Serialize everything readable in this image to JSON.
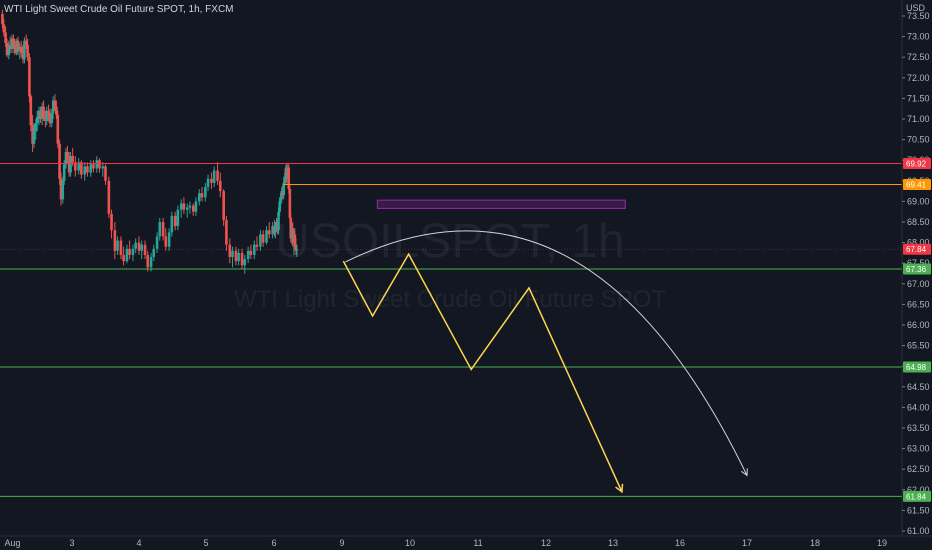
{
  "chart_data": {
    "type": "candlestick",
    "symbol_title": "WTI Light Sweet Crude Oil Future SPOT, 1h, FXCM",
    "watermark_symbol": "USOILSPOT, 1h",
    "watermark_name": "WTI Light Sweet Crude Oil Future SPOT",
    "currency": "USD",
    "ylim": [
      60.9,
      73.55
    ],
    "y_ticks": [
      61.0,
      61.5,
      62.0,
      62.5,
      63.0,
      63.5,
      64.0,
      64.5,
      65.0,
      65.5,
      66.0,
      66.5,
      67.0,
      67.5,
      68.0,
      68.5,
      69.0,
      69.5,
      70.0,
      70.5,
      71.0,
      71.5,
      72.0,
      72.5,
      73.0,
      73.5
    ],
    "x_ticks": [
      {
        "label": "Aug",
        "x": 1.1
      },
      {
        "label": "3",
        "x": 3
      },
      {
        "label": "4",
        "x": 4
      },
      {
        "label": "5",
        "x": 5
      },
      {
        "label": "6",
        "x": 6
      },
      {
        "label": "9",
        "x": 9
      },
      {
        "label": "10",
        "x": 10
      },
      {
        "label": "11",
        "x": 11
      },
      {
        "label": "12",
        "x": 12
      },
      {
        "label": "13",
        "x": 13
      },
      {
        "label": "16",
        "x": 16
      },
      {
        "label": "17",
        "x": 17
      },
      {
        "label": "18",
        "x": 18
      },
      {
        "label": "19",
        "x": 19
      }
    ],
    "x_range": [
      1.0,
      19.3
    ],
    "colors": {
      "up": "#26a69a",
      "down": "#ef5350",
      "resistance": "#f23645",
      "orange": "#ff9800",
      "support": "#4caf50",
      "zigzag": "#ffd54f",
      "arc": "#d1d4dc",
      "zone": "#9c27b0",
      "current_price": "#f23645"
    },
    "horizontal_levels": [
      {
        "price": 69.92,
        "label": "69.92",
        "color": "#f23645"
      },
      {
        "price": 69.41,
        "label": "69.41",
        "color": "#ff9800",
        "x_start": 6.42
      },
      {
        "price": 67.36,
        "label": "67.36",
        "color": "#4caf50"
      },
      {
        "price": 64.98,
        "label": "64.98",
        "color": "#4caf50"
      },
      {
        "price": 61.84,
        "label": "61.84",
        "color": "#4caf50"
      }
    ],
    "current_price": {
      "price": 67.84,
      "label": "67.84"
    },
    "zone": {
      "x1": 9.52,
      "x2": 13.55,
      "y1": 68.83,
      "y2": 69.03
    },
    "zigzag": [
      {
        "x": 9.02,
        "y": 67.55
      },
      {
        "x": 9.45,
        "y": 66.22
      },
      {
        "x": 9.98,
        "y": 67.72
      },
      {
        "x": 10.9,
        "y": 64.92
      },
      {
        "x": 11.75,
        "y": 66.9
      },
      {
        "x": 13.4,
        "y": 61.95
      }
    ],
    "arc": {
      "start": {
        "x": 9.05,
        "y": 67.53
      },
      "control": {
        "x": 12.6,
        "y": 70.4
      },
      "end": {
        "x": 17.0,
        "y": 62.35
      }
    },
    "candles": [
      {
        "x": 1.04,
        "o": 73.55,
        "h": 73.65,
        "l": 73.2,
        "c": 73.3
      },
      {
        "x": 1.08,
        "o": 73.3,
        "h": 73.42,
        "l": 73.0,
        "c": 73.1
      },
      {
        "x": 1.13,
        "o": 73.1,
        "h": 73.25,
        "l": 72.75,
        "c": 72.85
      },
      {
        "x": 1.17,
        "o": 72.85,
        "h": 72.95,
        "l": 72.5,
        "c": 72.55
      },
      {
        "x": 1.22,
        "o": 72.55,
        "h": 72.9,
        "l": 72.45,
        "c": 72.8
      },
      {
        "x": 1.26,
        "o": 72.8,
        "h": 73.0,
        "l": 72.6,
        "c": 72.7
      },
      {
        "x": 1.31,
        "o": 72.7,
        "h": 73.05,
        "l": 72.6,
        "c": 72.95
      },
      {
        "x": 1.35,
        "o": 72.95,
        "h": 73.05,
        "l": 72.7,
        "c": 72.8
      },
      {
        "x": 1.39,
        "o": 72.8,
        "h": 72.95,
        "l": 72.55,
        "c": 72.6
      },
      {
        "x": 1.44,
        "o": 72.6,
        "h": 72.95,
        "l": 72.55,
        "c": 72.9
      },
      {
        "x": 1.48,
        "o": 72.9,
        "h": 73.0,
        "l": 72.55,
        "c": 72.65
      },
      {
        "x": 1.53,
        "o": 72.65,
        "h": 72.85,
        "l": 72.45,
        "c": 72.75
      },
      {
        "x": 1.57,
        "o": 72.75,
        "h": 72.9,
        "l": 72.5,
        "c": 72.6
      },
      {
        "x": 1.62,
        "o": 72.6,
        "h": 72.8,
        "l": 72.35,
        "c": 72.45
      },
      {
        "x": 1.66,
        "o": 72.45,
        "h": 72.98,
        "l": 72.35,
        "c": 72.9
      },
      {
        "x": 1.71,
        "o": 72.9,
        "h": 73.05,
        "l": 72.7,
        "c": 72.8
      },
      {
        "x": 1.75,
        "o": 72.8,
        "h": 72.95,
        "l": 72.4,
        "c": 72.5
      },
      {
        "x": 1.8,
        "o": 72.5,
        "h": 72.6,
        "l": 71.4,
        "c": 71.55
      },
      {
        "x": 1.84,
        "o": 71.55,
        "h": 71.6,
        "l": 70.7,
        "c": 70.85
      },
      {
        "x": 1.89,
        "o": 70.85,
        "h": 71.1,
        "l": 70.2,
        "c": 70.4
      },
      {
        "x": 1.93,
        "o": 70.4,
        "h": 70.9,
        "l": 70.3,
        "c": 70.7
      },
      {
        "x": 1.98,
        "o": 70.7,
        "h": 71.0,
        "l": 70.5,
        "c": 70.9
      },
      {
        "x": 2.02,
        "o": 70.9,
        "h": 71.2,
        "l": 70.7,
        "c": 71.05
      },
      {
        "x": 2.07,
        "o": 71.05,
        "h": 71.3,
        "l": 70.85,
        "c": 71.2
      },
      {
        "x": 2.11,
        "o": 71.2,
        "h": 71.3,
        "l": 70.9,
        "c": 71.0
      },
      {
        "x": 2.16,
        "o": 71.0,
        "h": 71.4,
        "l": 70.85,
        "c": 71.3
      },
      {
        "x": 2.2,
        "o": 71.3,
        "h": 71.45,
        "l": 70.95,
        "c": 71.05
      },
      {
        "x": 2.25,
        "o": 71.05,
        "h": 71.2,
        "l": 70.8,
        "c": 70.95
      },
      {
        "x": 2.29,
        "o": 70.95,
        "h": 71.3,
        "l": 70.85,
        "c": 71.2
      },
      {
        "x": 2.34,
        "o": 71.2,
        "h": 71.35,
        "l": 70.95,
        "c": 71.1
      },
      {
        "x": 2.38,
        "o": 71.1,
        "h": 71.25,
        "l": 70.8,
        "c": 70.9
      },
      {
        "x": 2.43,
        "o": 70.9,
        "h": 71.25,
        "l": 70.8,
        "c": 71.15
      },
      {
        "x": 2.47,
        "o": 71.15,
        "h": 71.55,
        "l": 71.0,
        "c": 71.45
      },
      {
        "x": 2.52,
        "o": 71.45,
        "h": 71.6,
        "l": 71.2,
        "c": 71.3
      },
      {
        "x": 2.56,
        "o": 71.3,
        "h": 71.45,
        "l": 71.0,
        "c": 71.1
      },
      {
        "x": 2.6,
        "o": 71.1,
        "h": 71.2,
        "l": 70.3,
        "c": 70.4
      },
      {
        "x": 2.65,
        "o": 70.4,
        "h": 70.5,
        "l": 69.4,
        "c": 69.55
      },
      {
        "x": 2.69,
        "o": 69.55,
        "h": 69.7,
        "l": 68.9,
        "c": 69.05
      },
      {
        "x": 2.74,
        "o": 69.05,
        "h": 69.6,
        "l": 68.95,
        "c": 69.5
      },
      {
        "x": 2.78,
        "o": 69.5,
        "h": 70.0,
        "l": 69.4,
        "c": 69.9
      },
      {
        "x": 2.83,
        "o": 69.9,
        "h": 70.3,
        "l": 69.8,
        "c": 70.2
      },
      {
        "x": 2.87,
        "o": 70.2,
        "h": 70.35,
        "l": 69.9,
        "c": 70.0
      },
      {
        "x": 2.92,
        "o": 70.0,
        "h": 70.2,
        "l": 69.6,
        "c": 69.7
      },
      {
        "x": 2.96,
        "o": 69.7,
        "h": 70.2,
        "l": 69.6,
        "c": 70.1
      },
      {
        "x": 3.01,
        "o": 70.1,
        "h": 70.3,
        "l": 69.85,
        "c": 69.95
      },
      {
        "x": 3.05,
        "o": 69.95,
        "h": 70.1,
        "l": 69.6,
        "c": 69.75
      },
      {
        "x": 3.1,
        "o": 69.75,
        "h": 70.05,
        "l": 69.65,
        "c": 69.95
      },
      {
        "x": 3.14,
        "o": 69.95,
        "h": 70.0,
        "l": 69.55,
        "c": 69.65
      },
      {
        "x": 3.19,
        "o": 69.65,
        "h": 69.95,
        "l": 69.5,
        "c": 69.85
      },
      {
        "x": 3.23,
        "o": 69.85,
        "h": 69.95,
        "l": 69.6,
        "c": 69.7
      },
      {
        "x": 3.28,
        "o": 69.7,
        "h": 70.0,
        "l": 69.6,
        "c": 69.9
      },
      {
        "x": 3.32,
        "o": 69.9,
        "h": 70.0,
        "l": 69.7,
        "c": 69.8
      },
      {
        "x": 3.37,
        "o": 69.8,
        "h": 70.1,
        "l": 69.7,
        "c": 70.0
      },
      {
        "x": 3.41,
        "o": 70.0,
        "h": 70.05,
        "l": 69.7,
        "c": 69.8
      },
      {
        "x": 3.46,
        "o": 69.8,
        "h": 69.95,
        "l": 69.6,
        "c": 69.85
      },
      {
        "x": 3.5,
        "o": 69.85,
        "h": 69.9,
        "l": 69.4,
        "c": 69.5
      },
      {
        "x": 3.55,
        "o": 69.5,
        "h": 69.6,
        "l": 68.6,
        "c": 68.7
      },
      {
        "x": 3.59,
        "o": 68.7,
        "h": 68.8,
        "l": 68.1,
        "c": 68.3
      },
      {
        "x": 3.64,
        "o": 68.3,
        "h": 68.5,
        "l": 67.6,
        "c": 67.8
      },
      {
        "x": 3.68,
        "o": 67.8,
        "h": 68.15,
        "l": 67.7,
        "c": 68.05
      },
      {
        "x": 3.73,
        "o": 68.05,
        "h": 68.15,
        "l": 67.6,
        "c": 67.7
      },
      {
        "x": 3.77,
        "o": 67.7,
        "h": 67.9,
        "l": 67.45,
        "c": 67.55
      },
      {
        "x": 3.82,
        "o": 67.55,
        "h": 67.95,
        "l": 67.5,
        "c": 67.85
      },
      {
        "x": 3.86,
        "o": 67.85,
        "h": 68.05,
        "l": 67.6,
        "c": 67.7
      },
      {
        "x": 3.91,
        "o": 67.7,
        "h": 67.95,
        "l": 67.55,
        "c": 67.85
      },
      {
        "x": 3.95,
        "o": 67.85,
        "h": 68.1,
        "l": 67.75,
        "c": 68.0
      },
      {
        "x": 4.0,
        "o": 68.0,
        "h": 68.15,
        "l": 67.7,
        "c": 67.8
      },
      {
        "x": 4.04,
        "o": 67.8,
        "h": 68.05,
        "l": 67.6,
        "c": 67.95
      },
      {
        "x": 4.09,
        "o": 67.95,
        "h": 68.05,
        "l": 67.6,
        "c": 67.7
      },
      {
        "x": 4.13,
        "o": 67.7,
        "h": 67.8,
        "l": 67.3,
        "c": 67.4
      },
      {
        "x": 4.18,
        "o": 67.4,
        "h": 67.75,
        "l": 67.3,
        "c": 67.65
      },
      {
        "x": 4.22,
        "o": 67.65,
        "h": 67.95,
        "l": 67.55,
        "c": 67.85
      },
      {
        "x": 4.27,
        "o": 67.85,
        "h": 68.25,
        "l": 67.75,
        "c": 68.15
      },
      {
        "x": 4.31,
        "o": 68.15,
        "h": 68.6,
        "l": 68.05,
        "c": 68.5
      },
      {
        "x": 4.36,
        "o": 68.5,
        "h": 68.6,
        "l": 68.05,
        "c": 68.15
      },
      {
        "x": 4.4,
        "o": 68.15,
        "h": 68.35,
        "l": 67.8,
        "c": 67.9
      },
      {
        "x": 4.45,
        "o": 67.9,
        "h": 68.35,
        "l": 67.8,
        "c": 68.25
      },
      {
        "x": 4.49,
        "o": 68.25,
        "h": 68.75,
        "l": 68.15,
        "c": 68.65
      },
      {
        "x": 4.54,
        "o": 68.65,
        "h": 68.75,
        "l": 68.3,
        "c": 68.4
      },
      {
        "x": 4.58,
        "o": 68.4,
        "h": 68.9,
        "l": 68.3,
        "c": 68.8
      },
      {
        "x": 4.63,
        "o": 68.8,
        "h": 69.05,
        "l": 68.6,
        "c": 68.95
      },
      {
        "x": 4.67,
        "o": 68.95,
        "h": 69.1,
        "l": 68.7,
        "c": 68.8
      },
      {
        "x": 4.72,
        "o": 68.8,
        "h": 68.95,
        "l": 68.6,
        "c": 68.85
      },
      {
        "x": 4.76,
        "o": 68.85,
        "h": 69.0,
        "l": 68.7,
        "c": 68.9
      },
      {
        "x": 4.81,
        "o": 68.9,
        "h": 68.95,
        "l": 68.65,
        "c": 68.75
      },
      {
        "x": 4.85,
        "o": 68.75,
        "h": 69.1,
        "l": 68.65,
        "c": 69.0
      },
      {
        "x": 4.9,
        "o": 69.0,
        "h": 69.3,
        "l": 68.9,
        "c": 69.2
      },
      {
        "x": 4.94,
        "o": 69.2,
        "h": 69.35,
        "l": 69.0,
        "c": 69.1
      },
      {
        "x": 4.99,
        "o": 69.1,
        "h": 69.45,
        "l": 69.0,
        "c": 69.35
      },
      {
        "x": 5.03,
        "o": 69.35,
        "h": 69.65,
        "l": 69.25,
        "c": 69.55
      },
      {
        "x": 5.08,
        "o": 69.55,
        "h": 69.7,
        "l": 69.3,
        "c": 69.45
      },
      {
        "x": 5.12,
        "o": 69.45,
        "h": 69.85,
        "l": 69.35,
        "c": 69.75
      },
      {
        "x": 5.17,
        "o": 69.75,
        "h": 69.95,
        "l": 69.4,
        "c": 69.5
      },
      {
        "x": 5.21,
        "o": 69.5,
        "h": 69.7,
        "l": 69.1,
        "c": 69.25
      },
      {
        "x": 5.26,
        "o": 69.25,
        "h": 69.3,
        "l": 68.4,
        "c": 68.55
      },
      {
        "x": 5.3,
        "o": 68.55,
        "h": 68.65,
        "l": 67.8,
        "c": 67.95
      },
      {
        "x": 5.35,
        "o": 67.95,
        "h": 68.1,
        "l": 67.5,
        "c": 67.65
      },
      {
        "x": 5.39,
        "o": 67.65,
        "h": 67.9,
        "l": 67.4,
        "c": 67.8
      },
      {
        "x": 5.44,
        "o": 67.8,
        "h": 67.9,
        "l": 67.45,
        "c": 67.55
      },
      {
        "x": 5.48,
        "o": 67.55,
        "h": 67.85,
        "l": 67.45,
        "c": 67.75
      },
      {
        "x": 5.53,
        "o": 67.75,
        "h": 67.85,
        "l": 67.35,
        "c": 67.45
      },
      {
        "x": 5.57,
        "o": 67.45,
        "h": 67.7,
        "l": 67.25,
        "c": 67.6
      },
      {
        "x": 5.62,
        "o": 67.6,
        "h": 67.9,
        "l": 67.5,
        "c": 67.8
      },
      {
        "x": 5.66,
        "o": 67.8,
        "h": 67.95,
        "l": 67.6,
        "c": 67.7
      },
      {
        "x": 5.71,
        "o": 67.7,
        "h": 68.05,
        "l": 67.6,
        "c": 67.95
      },
      {
        "x": 5.75,
        "o": 67.95,
        "h": 68.15,
        "l": 67.8,
        "c": 67.9
      },
      {
        "x": 5.8,
        "o": 67.9,
        "h": 68.3,
        "l": 67.8,
        "c": 68.2
      },
      {
        "x": 5.84,
        "o": 68.2,
        "h": 68.3,
        "l": 67.9,
        "c": 68.0
      },
      {
        "x": 5.89,
        "o": 68.0,
        "h": 68.4,
        "l": 67.95,
        "c": 68.3
      },
      {
        "x": 5.93,
        "o": 68.3,
        "h": 68.5,
        "l": 68.1,
        "c": 68.2
      },
      {
        "x": 5.98,
        "o": 68.2,
        "h": 68.5,
        "l": 68.1,
        "c": 68.4
      },
      {
        "x": 6.02,
        "o": 68.4,
        "h": 68.55,
        "l": 68.15,
        "c": 68.25
      },
      {
        "x": 6.07,
        "o": 68.25,
        "h": 68.5,
        "l": 68.1,
        "c": 68.45
      },
      {
        "x": 6.11,
        "o": 68.45,
        "h": 68.6,
        "l": 68.3,
        "c": 68.5
      },
      {
        "x": 6.16,
        "o": 68.5,
        "h": 68.55,
        "l": 68.2,
        "c": 68.3
      },
      {
        "x": 6.2,
        "o": 68.3,
        "h": 68.85,
        "l": 68.2,
        "c": 68.75
      },
      {
        "x": 6.25,
        "o": 68.75,
        "h": 69.1,
        "l": 68.65,
        "c": 69.0
      },
      {
        "x": 6.29,
        "o": 69.0,
        "h": 69.2,
        "l": 68.85,
        "c": 69.1
      },
      {
        "x": 6.34,
        "o": 69.1,
        "h": 69.35,
        "l": 68.95,
        "c": 69.25
      },
      {
        "x": 6.38,
        "o": 69.25,
        "h": 69.4,
        "l": 69.05,
        "c": 69.15
      },
      {
        "x": 6.43,
        "o": 69.15,
        "h": 69.55,
        "l": 69.05,
        "c": 69.45
      },
      {
        "x": 6.47,
        "o": 69.45,
        "h": 69.7,
        "l": 69.35,
        "c": 69.6
      },
      {
        "x": 6.52,
        "o": 69.6,
        "h": 69.88,
        "l": 69.4,
        "c": 69.8
      },
      {
        "x": 6.56,
        "o": 69.8,
        "h": 69.92,
        "l": 69.45,
        "c": 69.55
      },
      {
        "x": 6.61,
        "o": 69.55,
        "h": 69.9,
        "l": 69.4,
        "c": 69.82
      },
      {
        "x": 6.65,
        "o": 69.82,
        "h": 69.9,
        "l": 69.2,
        "c": 69.3
      },
      {
        "x": 6.7,
        "o": 69.3,
        "h": 69.4,
        "l": 68.5,
        "c": 68.6
      },
      {
        "x": 6.74,
        "o": 68.6,
        "h": 68.7,
        "l": 68.0,
        "c": 68.1
      },
      {
        "x": 6.79,
        "o": 68.1,
        "h": 68.45,
        "l": 67.95,
        "c": 68.35
      },
      {
        "x": 6.83,
        "o": 68.35,
        "h": 68.5,
        "l": 67.9,
        "c": 68.0
      },
      {
        "x": 6.88,
        "o": 68.0,
        "h": 68.3,
        "l": 67.7,
        "c": 68.2
      },
      {
        "x": 6.92,
        "o": 68.2,
        "h": 68.35,
        "l": 67.85,
        "c": 67.95
      },
      {
        "x": 6.97,
        "o": 67.95,
        "h": 68.1,
        "l": 67.7,
        "c": 67.8
      },
      {
        "x": 7.01,
        "o": 67.8,
        "h": 67.95,
        "l": 67.65,
        "c": 67.84
      }
    ]
  }
}
